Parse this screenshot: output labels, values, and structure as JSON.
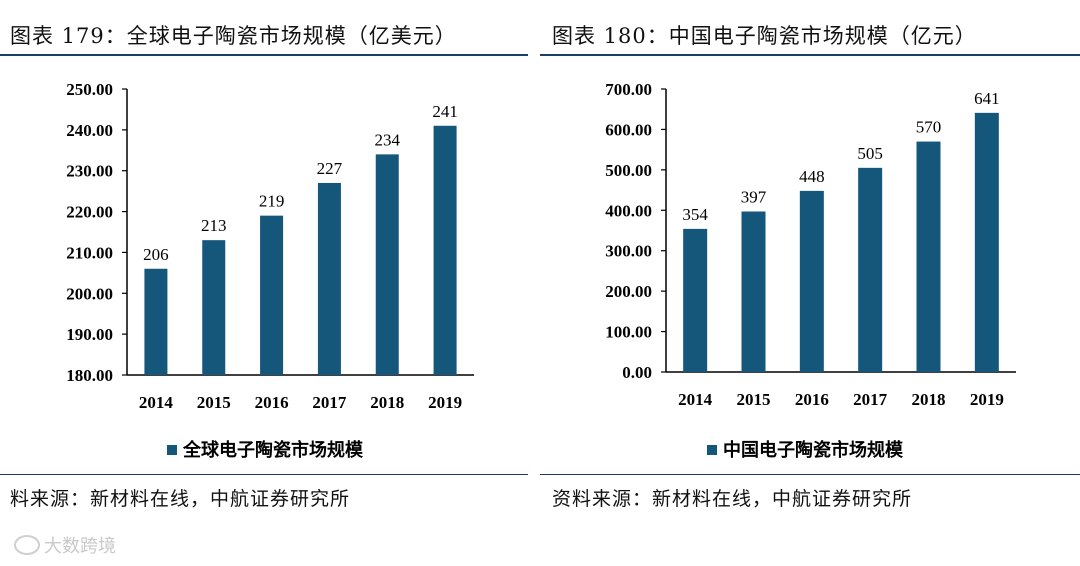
{
  "left": {
    "title": "图表 179：全球电子陶瓷市场规模（亿美元）",
    "source": "料来源：新材料在线，中航证券研究所"
  },
  "right": {
    "title": "图表 180：中国电子陶瓷市场规模（亿元）",
    "source": "资料来源：新材料在线，中航证券研究所"
  },
  "watermark": "大数跨境",
  "colors": {
    "bar": "#14577a",
    "rule": "#1f3d6b"
  },
  "chart_data": [
    {
      "type": "bar",
      "categories": [
        "2014",
        "2015",
        "2016",
        "2017",
        "2018",
        "2019"
      ],
      "series": [
        {
          "name": "全球电子陶瓷市场规模",
          "values": [
            206,
            213,
            219,
            227,
            234,
            241
          ]
        }
      ],
      "data_labels": [
        "206",
        "213",
        "219",
        "227",
        "234",
        "241"
      ],
      "ylim": [
        180,
        250
      ],
      "yticks": [
        180,
        190,
        200,
        210,
        220,
        230,
        240,
        250
      ],
      "ytick_labels": [
        "180.00",
        "190.00",
        "200.00",
        "210.00",
        "220.00",
        "230.00",
        "240.00",
        "250.00"
      ],
      "legend": "bottom-center",
      "grid": false
    },
    {
      "type": "bar",
      "categories": [
        "2014",
        "2015",
        "2016",
        "2017",
        "2018",
        "2019"
      ],
      "series": [
        {
          "name": "中国电子陶瓷市场规模",
          "values": [
            354,
            397,
            448,
            505,
            570,
            641
          ]
        }
      ],
      "data_labels": [
        "354",
        "397",
        "448",
        "505",
        "570",
        "641"
      ],
      "ylim": [
        0,
        700
      ],
      "yticks": [
        0,
        100,
        200,
        300,
        400,
        500,
        600,
        700
      ],
      "ytick_labels": [
        "0.00",
        "100.00",
        "200.00",
        "300.00",
        "400.00",
        "500.00",
        "600.00",
        "700.00"
      ],
      "legend": "bottom-center",
      "grid": false
    }
  ]
}
